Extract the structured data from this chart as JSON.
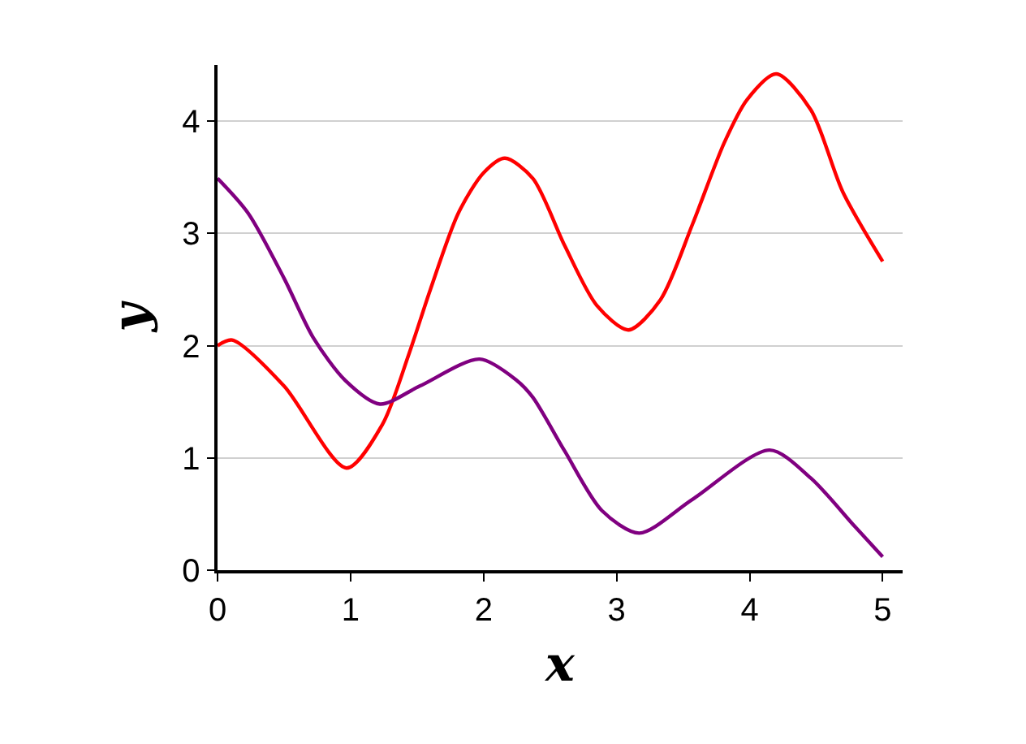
{
  "chart_data": {
    "type": "line",
    "xlabel": "x",
    "ylabel": "y",
    "xlim": [
      0,
      5.15
    ],
    "ylim": [
      0,
      4.5
    ],
    "xticks": [
      0,
      1,
      2,
      3,
      4,
      5
    ],
    "yticks": [
      0,
      1,
      2,
      3,
      4
    ],
    "grid": "y",
    "line_style": "solid",
    "series": [
      {
        "color": "#ff0000",
        "x": [
          0,
          0.11,
          0.5,
          0.97,
          1.24,
          1.44,
          1.6,
          1.81,
          2,
          2.16,
          2.37,
          2.61,
          2.85,
          3.09,
          3.33,
          3.57,
          3.81,
          3.98,
          4.2,
          4.46,
          4.7,
          5
        ],
        "values": [
          2.0,
          2.05,
          1.64,
          0.91,
          1.3,
          1.93,
          2.5,
          3.18,
          3.54,
          3.67,
          3.49,
          2.89,
          2.36,
          2.14,
          2.41,
          3.08,
          3.81,
          4.19,
          4.42,
          4.1,
          3.37,
          2.75
        ]
      },
      {
        "color": "#800080",
        "x": [
          0,
          0.23,
          0.5,
          0.72,
          0.96,
          1.22,
          1.52,
          1.97,
          2.25,
          2.37,
          2.61,
          2.89,
          3.17,
          3.57,
          4.15,
          4.46,
          4.79,
          5
        ],
        "values": [
          3.49,
          3.18,
          2.6,
          2.07,
          1.69,
          1.48,
          1.64,
          1.88,
          1.69,
          1.54,
          1.06,
          0.53,
          0.33,
          0.63,
          1.07,
          0.82,
          0.39,
          0.12
        ]
      }
    ]
  }
}
